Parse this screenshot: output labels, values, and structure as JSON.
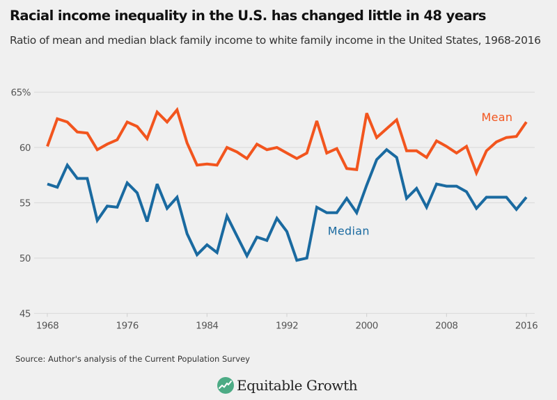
{
  "chart_data": {
    "type": "line",
    "title": "Racial income inequality in the U.S. has changed little in 48 years",
    "subtitle": "Ratio of mean and median black family income to white family income in the United States, 1968-2016",
    "xlabel": "",
    "ylabel": "",
    "ylim": [
      45,
      65
    ],
    "xlim": [
      1968,
      2016
    ],
    "grid": true,
    "y_ticks": [
      {
        "value": 65,
        "label": "65%"
      },
      {
        "value": 60,
        "label": "60"
      },
      {
        "value": 55,
        "label": "55"
      },
      {
        "value": 50,
        "label": "50"
      },
      {
        "value": 45,
        "label": "45"
      }
    ],
    "x_ticks": [
      {
        "value": 1968,
        "label": "1968"
      },
      {
        "value": 1976,
        "label": "1976"
      },
      {
        "value": 1984,
        "label": "1984"
      },
      {
        "value": 1992,
        "label": "1992"
      },
      {
        "value": 2000,
        "label": "2000"
      },
      {
        "value": 2008,
        "label": "2008"
      },
      {
        "value": 2016,
        "label": "2016"
      }
    ],
    "x": [
      1968,
      1969,
      1970,
      1971,
      1972,
      1973,
      1974,
      1975,
      1976,
      1977,
      1978,
      1979,
      1980,
      1981,
      1982,
      1983,
      1984,
      1985,
      1986,
      1987,
      1988,
      1989,
      1990,
      1991,
      1992,
      1993,
      1994,
      1995,
      1996,
      1997,
      1998,
      1999,
      2000,
      2001,
      2002,
      2003,
      2004,
      2005,
      2006,
      2007,
      2008,
      2009,
      2010,
      2011,
      2012,
      2013,
      2014,
      2015,
      2016
    ],
    "series": [
      {
        "name": "Mean",
        "color": "#f2551e",
        "label_at": {
          "x": 2011.5,
          "y": 62.4
        },
        "values": [
          60.1,
          62.6,
          62.3,
          61.4,
          61.3,
          59.8,
          60.3,
          60.7,
          62.3,
          61.9,
          60.8,
          63.2,
          62.3,
          63.4,
          60.4,
          58.4,
          58.5,
          58.4,
          60.0,
          59.6,
          59.0,
          60.3,
          59.8,
          60.0,
          59.5,
          59.0,
          59.5,
          62.4,
          59.5,
          59.9,
          58.1,
          58.0,
          63.1,
          60.9,
          61.7,
          62.5,
          59.7,
          59.7,
          59.1,
          60.6,
          60.1,
          59.5,
          60.1,
          57.7,
          59.7,
          60.5,
          60.9,
          61.0,
          62.3
        ]
      },
      {
        "name": "Median",
        "color": "#1a6aa0",
        "label_at": {
          "x": 1996.1,
          "y": 52.1
        },
        "values": [
          56.7,
          56.4,
          58.4,
          57.2,
          57.2,
          53.4,
          54.7,
          54.6,
          56.8,
          55.9,
          53.3,
          56.7,
          54.5,
          55.5,
          52.2,
          50.3,
          51.2,
          50.5,
          53.8,
          52.0,
          50.2,
          51.9,
          51.6,
          53.6,
          52.4,
          49.8,
          50.0,
          54.6,
          54.1,
          54.1,
          55.4,
          54.1,
          56.6,
          58.9,
          59.8,
          59.1,
          55.4,
          56.3,
          54.6,
          56.7,
          56.5,
          56.5,
          56.0,
          54.5,
          55.5,
          55.5,
          55.5,
          54.4,
          55.5
        ]
      }
    ],
    "legend": "inline-labels",
    "source": "Source: Author's analysis of the Current Population Survey"
  },
  "brand": {
    "name": "Equitable Growth",
    "icon": "equitable-growth-logo-icon",
    "icon_color": "#4cab85"
  },
  "colors": {
    "background": "#f0f0f0",
    "gridline": "#dcdcdc"
  }
}
